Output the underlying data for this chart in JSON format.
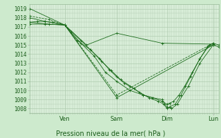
{
  "title": "",
  "xlabel": "Pression niveau de la mer( hPa )",
  "ylabel": "",
  "background_color": "#cdeacd",
  "plot_bg_color": "#d9eed9",
  "grid_color": "#b0ccb0",
  "line_color": "#1a6b1a",
  "ylim": [
    1007.5,
    1019.5
  ],
  "day_labels": [
    "Ven",
    "Sam",
    "Dim",
    "Lun"
  ],
  "day_positions": [
    0.185,
    0.46,
    0.725,
    0.97
  ],
  "yticks": [
    1008,
    1009,
    1010,
    1011,
    1012,
    1013,
    1014,
    1015,
    1016,
    1017,
    1018,
    1019
  ],
  "lines": [
    {
      "x": [
        0.0,
        0.185,
        0.46,
        0.97
      ],
      "y": [
        1019.0,
        1017.2,
        1009.2,
        1015.0
      ]
    },
    {
      "x": [
        0.0,
        0.1,
        0.185,
        0.46,
        0.97
      ],
      "y": [
        1018.2,
        1017.8,
        1017.2,
        1009.5,
        1015.2
      ],
      "dashed": true
    },
    {
      "x": [
        0.0,
        0.08,
        0.185,
        0.3,
        0.46,
        0.7,
        0.97
      ],
      "y": [
        1018.0,
        1017.6,
        1017.2,
        1015.0,
        1016.3,
        1015.2,
        1015.1
      ]
    },
    {
      "x": [
        0.0,
        0.1,
        0.185,
        0.27,
        0.34,
        0.4,
        0.46,
        0.53,
        0.6,
        0.65,
        0.7,
        0.725,
        0.75,
        0.78,
        0.84,
        0.9,
        0.97
      ],
      "y": [
        1017.5,
        1017.3,
        1017.2,
        1015.2,
        1013.8,
        1012.0,
        1011.0,
        1010.0,
        1009.5,
        1009.2,
        1009.0,
        1008.2,
        1008.0,
        1008.5,
        1010.5,
        1013.0,
        1015.0
      ]
    },
    {
      "x": [
        0.0,
        0.08,
        0.185,
        0.25,
        0.32,
        0.38,
        0.43,
        0.48,
        0.53,
        0.58,
        0.63,
        0.68,
        0.71,
        0.725,
        0.74,
        0.77,
        0.8,
        0.85,
        0.9,
        0.95,
        0.97,
        1.0
      ],
      "y": [
        1017.3,
        1017.3,
        1017.2,
        1015.5,
        1014.5,
        1013.2,
        1012.2,
        1011.2,
        1010.5,
        1009.8,
        1009.2,
        1008.8,
        1008.5,
        1008.0,
        1008.2,
        1008.5,
        1009.5,
        1011.5,
        1013.5,
        1015.0,
        1015.2,
        1015.0
      ]
    },
    {
      "x": [
        0.0,
        0.04,
        0.08,
        0.12,
        0.185,
        0.22,
        0.27,
        0.32,
        0.37,
        0.42,
        0.46,
        0.5,
        0.55,
        0.6,
        0.65,
        0.7,
        0.725,
        0.74,
        0.76,
        0.79,
        0.82,
        0.86,
        0.9,
        0.94,
        0.97,
        1.0
      ],
      "y": [
        1017.5,
        1017.6,
        1017.6,
        1017.5,
        1017.2,
        1016.5,
        1015.5,
        1014.5,
        1013.5,
        1012.3,
        1011.5,
        1010.8,
        1010.2,
        1009.5,
        1009.2,
        1008.8,
        1008.5,
        1008.6,
        1008.8,
        1009.5,
        1010.5,
        1012.0,
        1013.5,
        1014.8,
        1015.0,
        1014.8
      ]
    }
  ]
}
